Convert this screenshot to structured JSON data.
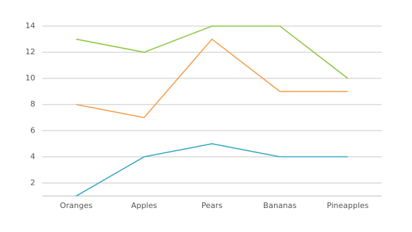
{
  "chart_data": {
    "type": "line",
    "categories": [
      "Oranges",
      "Apples",
      "Pears",
      "Bananas",
      "Pineapples"
    ],
    "series": [
      {
        "color": "#8cc63f",
        "values": [
          13,
          12,
          14,
          14,
          10
        ]
      },
      {
        "color": "#f0a04b",
        "values": [
          8,
          7,
          13,
          9,
          9
        ]
      },
      {
        "color": "#3ba9c5",
        "values": [
          1,
          4,
          5,
          4,
          4
        ]
      }
    ],
    "ylim": [
      1,
      14
    ],
    "yticks": [
      2,
      4,
      6,
      8,
      10,
      12,
      14
    ],
    "grid": true
  }
}
